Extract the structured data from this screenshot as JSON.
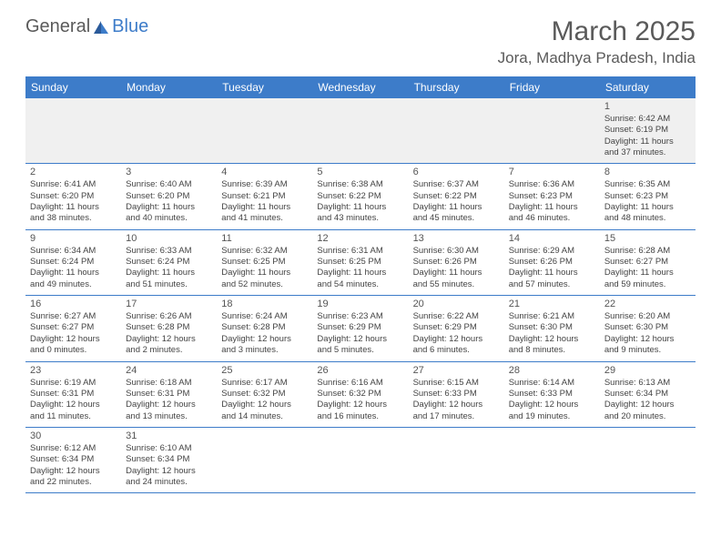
{
  "brand": {
    "part1": "General",
    "part2": "Blue"
  },
  "title": "March 2025",
  "location": "Jora, Madhya Pradesh, India",
  "colors": {
    "header_bg": "#3d7cc9",
    "header_text": "#ffffff",
    "border": "#3d7cc9",
    "title_color": "#5a5a5a",
    "body_text": "#444444",
    "first_row_bg": "#f0f0f0"
  },
  "weekdays": [
    "Sunday",
    "Monday",
    "Tuesday",
    "Wednesday",
    "Thursday",
    "Friday",
    "Saturday"
  ],
  "weeks": [
    [
      null,
      null,
      null,
      null,
      null,
      null,
      {
        "n": "1",
        "sr": "6:42 AM",
        "ss": "6:19 PM",
        "dh": "11",
        "dm": "37"
      }
    ],
    [
      {
        "n": "2",
        "sr": "6:41 AM",
        "ss": "6:20 PM",
        "dh": "11",
        "dm": "38"
      },
      {
        "n": "3",
        "sr": "6:40 AM",
        "ss": "6:20 PM",
        "dh": "11",
        "dm": "40"
      },
      {
        "n": "4",
        "sr": "6:39 AM",
        "ss": "6:21 PM",
        "dh": "11",
        "dm": "41"
      },
      {
        "n": "5",
        "sr": "6:38 AM",
        "ss": "6:22 PM",
        "dh": "11",
        "dm": "43"
      },
      {
        "n": "6",
        "sr": "6:37 AM",
        "ss": "6:22 PM",
        "dh": "11",
        "dm": "45"
      },
      {
        "n": "7",
        "sr": "6:36 AM",
        "ss": "6:23 PM",
        "dh": "11",
        "dm": "46"
      },
      {
        "n": "8",
        "sr": "6:35 AM",
        "ss": "6:23 PM",
        "dh": "11",
        "dm": "48"
      }
    ],
    [
      {
        "n": "9",
        "sr": "6:34 AM",
        "ss": "6:24 PM",
        "dh": "11",
        "dm": "49"
      },
      {
        "n": "10",
        "sr": "6:33 AM",
        "ss": "6:24 PM",
        "dh": "11",
        "dm": "51"
      },
      {
        "n": "11",
        "sr": "6:32 AM",
        "ss": "6:25 PM",
        "dh": "11",
        "dm": "52"
      },
      {
        "n": "12",
        "sr": "6:31 AM",
        "ss": "6:25 PM",
        "dh": "11",
        "dm": "54"
      },
      {
        "n": "13",
        "sr": "6:30 AM",
        "ss": "6:26 PM",
        "dh": "11",
        "dm": "55"
      },
      {
        "n": "14",
        "sr": "6:29 AM",
        "ss": "6:26 PM",
        "dh": "11",
        "dm": "57"
      },
      {
        "n": "15",
        "sr": "6:28 AM",
        "ss": "6:27 PM",
        "dh": "11",
        "dm": "59"
      }
    ],
    [
      {
        "n": "16",
        "sr": "6:27 AM",
        "ss": "6:27 PM",
        "dh": "12",
        "dm": "0"
      },
      {
        "n": "17",
        "sr": "6:26 AM",
        "ss": "6:28 PM",
        "dh": "12",
        "dm": "2"
      },
      {
        "n": "18",
        "sr": "6:24 AM",
        "ss": "6:28 PM",
        "dh": "12",
        "dm": "3"
      },
      {
        "n": "19",
        "sr": "6:23 AM",
        "ss": "6:29 PM",
        "dh": "12",
        "dm": "5"
      },
      {
        "n": "20",
        "sr": "6:22 AM",
        "ss": "6:29 PM",
        "dh": "12",
        "dm": "6"
      },
      {
        "n": "21",
        "sr": "6:21 AM",
        "ss": "6:30 PM",
        "dh": "12",
        "dm": "8"
      },
      {
        "n": "22",
        "sr": "6:20 AM",
        "ss": "6:30 PM",
        "dh": "12",
        "dm": "9"
      }
    ],
    [
      {
        "n": "23",
        "sr": "6:19 AM",
        "ss": "6:31 PM",
        "dh": "12",
        "dm": "11"
      },
      {
        "n": "24",
        "sr": "6:18 AM",
        "ss": "6:31 PM",
        "dh": "12",
        "dm": "13"
      },
      {
        "n": "25",
        "sr": "6:17 AM",
        "ss": "6:32 PM",
        "dh": "12",
        "dm": "14"
      },
      {
        "n": "26",
        "sr": "6:16 AM",
        "ss": "6:32 PM",
        "dh": "12",
        "dm": "16"
      },
      {
        "n": "27",
        "sr": "6:15 AM",
        "ss": "6:33 PM",
        "dh": "12",
        "dm": "17"
      },
      {
        "n": "28",
        "sr": "6:14 AM",
        "ss": "6:33 PM",
        "dh": "12",
        "dm": "19"
      },
      {
        "n": "29",
        "sr": "6:13 AM",
        "ss": "6:34 PM",
        "dh": "12",
        "dm": "20"
      }
    ],
    [
      {
        "n": "30",
        "sr": "6:12 AM",
        "ss": "6:34 PM",
        "dh": "12",
        "dm": "22"
      },
      {
        "n": "31",
        "sr": "6:10 AM",
        "ss": "6:34 PM",
        "dh": "12",
        "dm": "24"
      },
      null,
      null,
      null,
      null,
      null
    ]
  ]
}
